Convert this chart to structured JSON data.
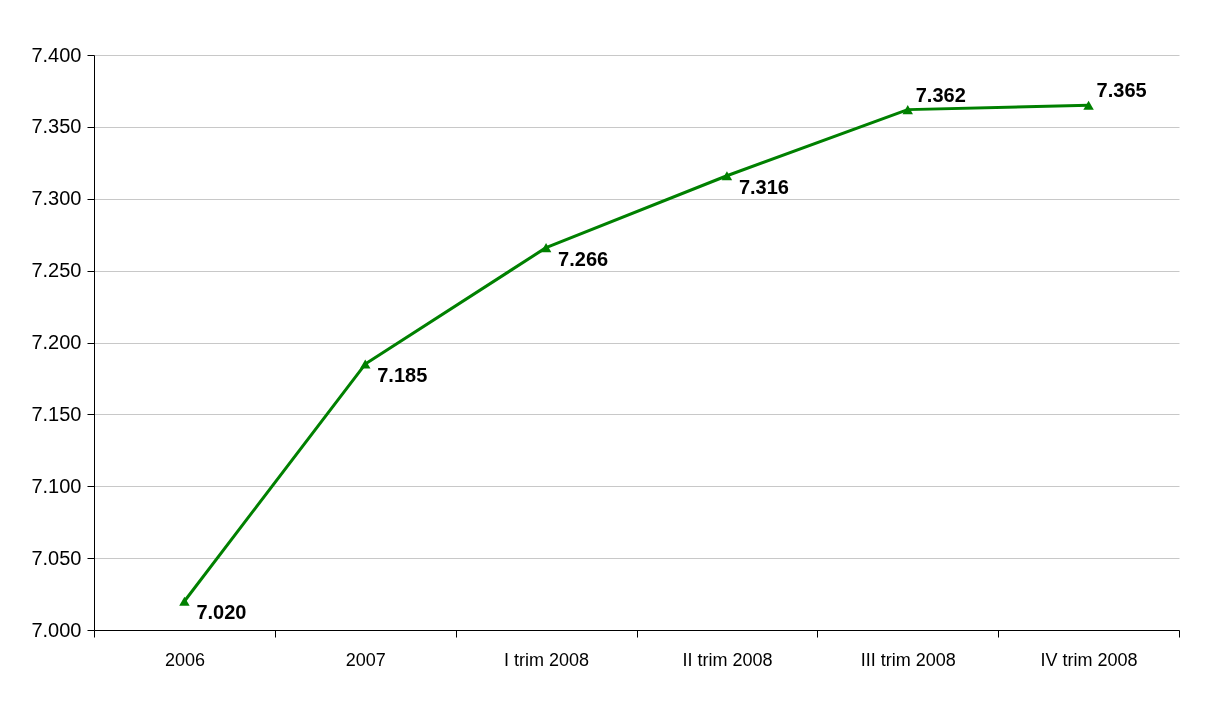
{
  "chart_data": {
    "type": "line",
    "categories": [
      "2006",
      "2007",
      "I trim 2008",
      "II trim 2008",
      "III trim 2008",
      "IV trim 2008"
    ],
    "series": [
      {
        "color": "#008000",
        "values": [
          7.02,
          7.185,
          7.266,
          7.316,
          7.362,
          7.365
        ],
        "value_labels": [
          "7.020",
          "7.185",
          "7.266",
          "7.316",
          "7.362",
          "7.365"
        ]
      }
    ],
    "ylim": [
      7.0,
      7.4
    ],
    "yticks": [
      {
        "value": 7.0,
        "label": "7.000"
      },
      {
        "value": 7.05,
        "label": "7.050"
      },
      {
        "value": 7.1,
        "label": "7.100"
      },
      {
        "value": 7.15,
        "label": "7.150"
      },
      {
        "value": 7.2,
        "label": "7.200"
      },
      {
        "value": 7.25,
        "label": "7.250"
      },
      {
        "value": 7.3,
        "label": "7.300"
      },
      {
        "value": 7.35,
        "label": "7.350"
      },
      {
        "value": 7.4,
        "label": "7.400"
      }
    ],
    "grid": "y",
    "marker": "triangle",
    "line_style": "solid"
  }
}
